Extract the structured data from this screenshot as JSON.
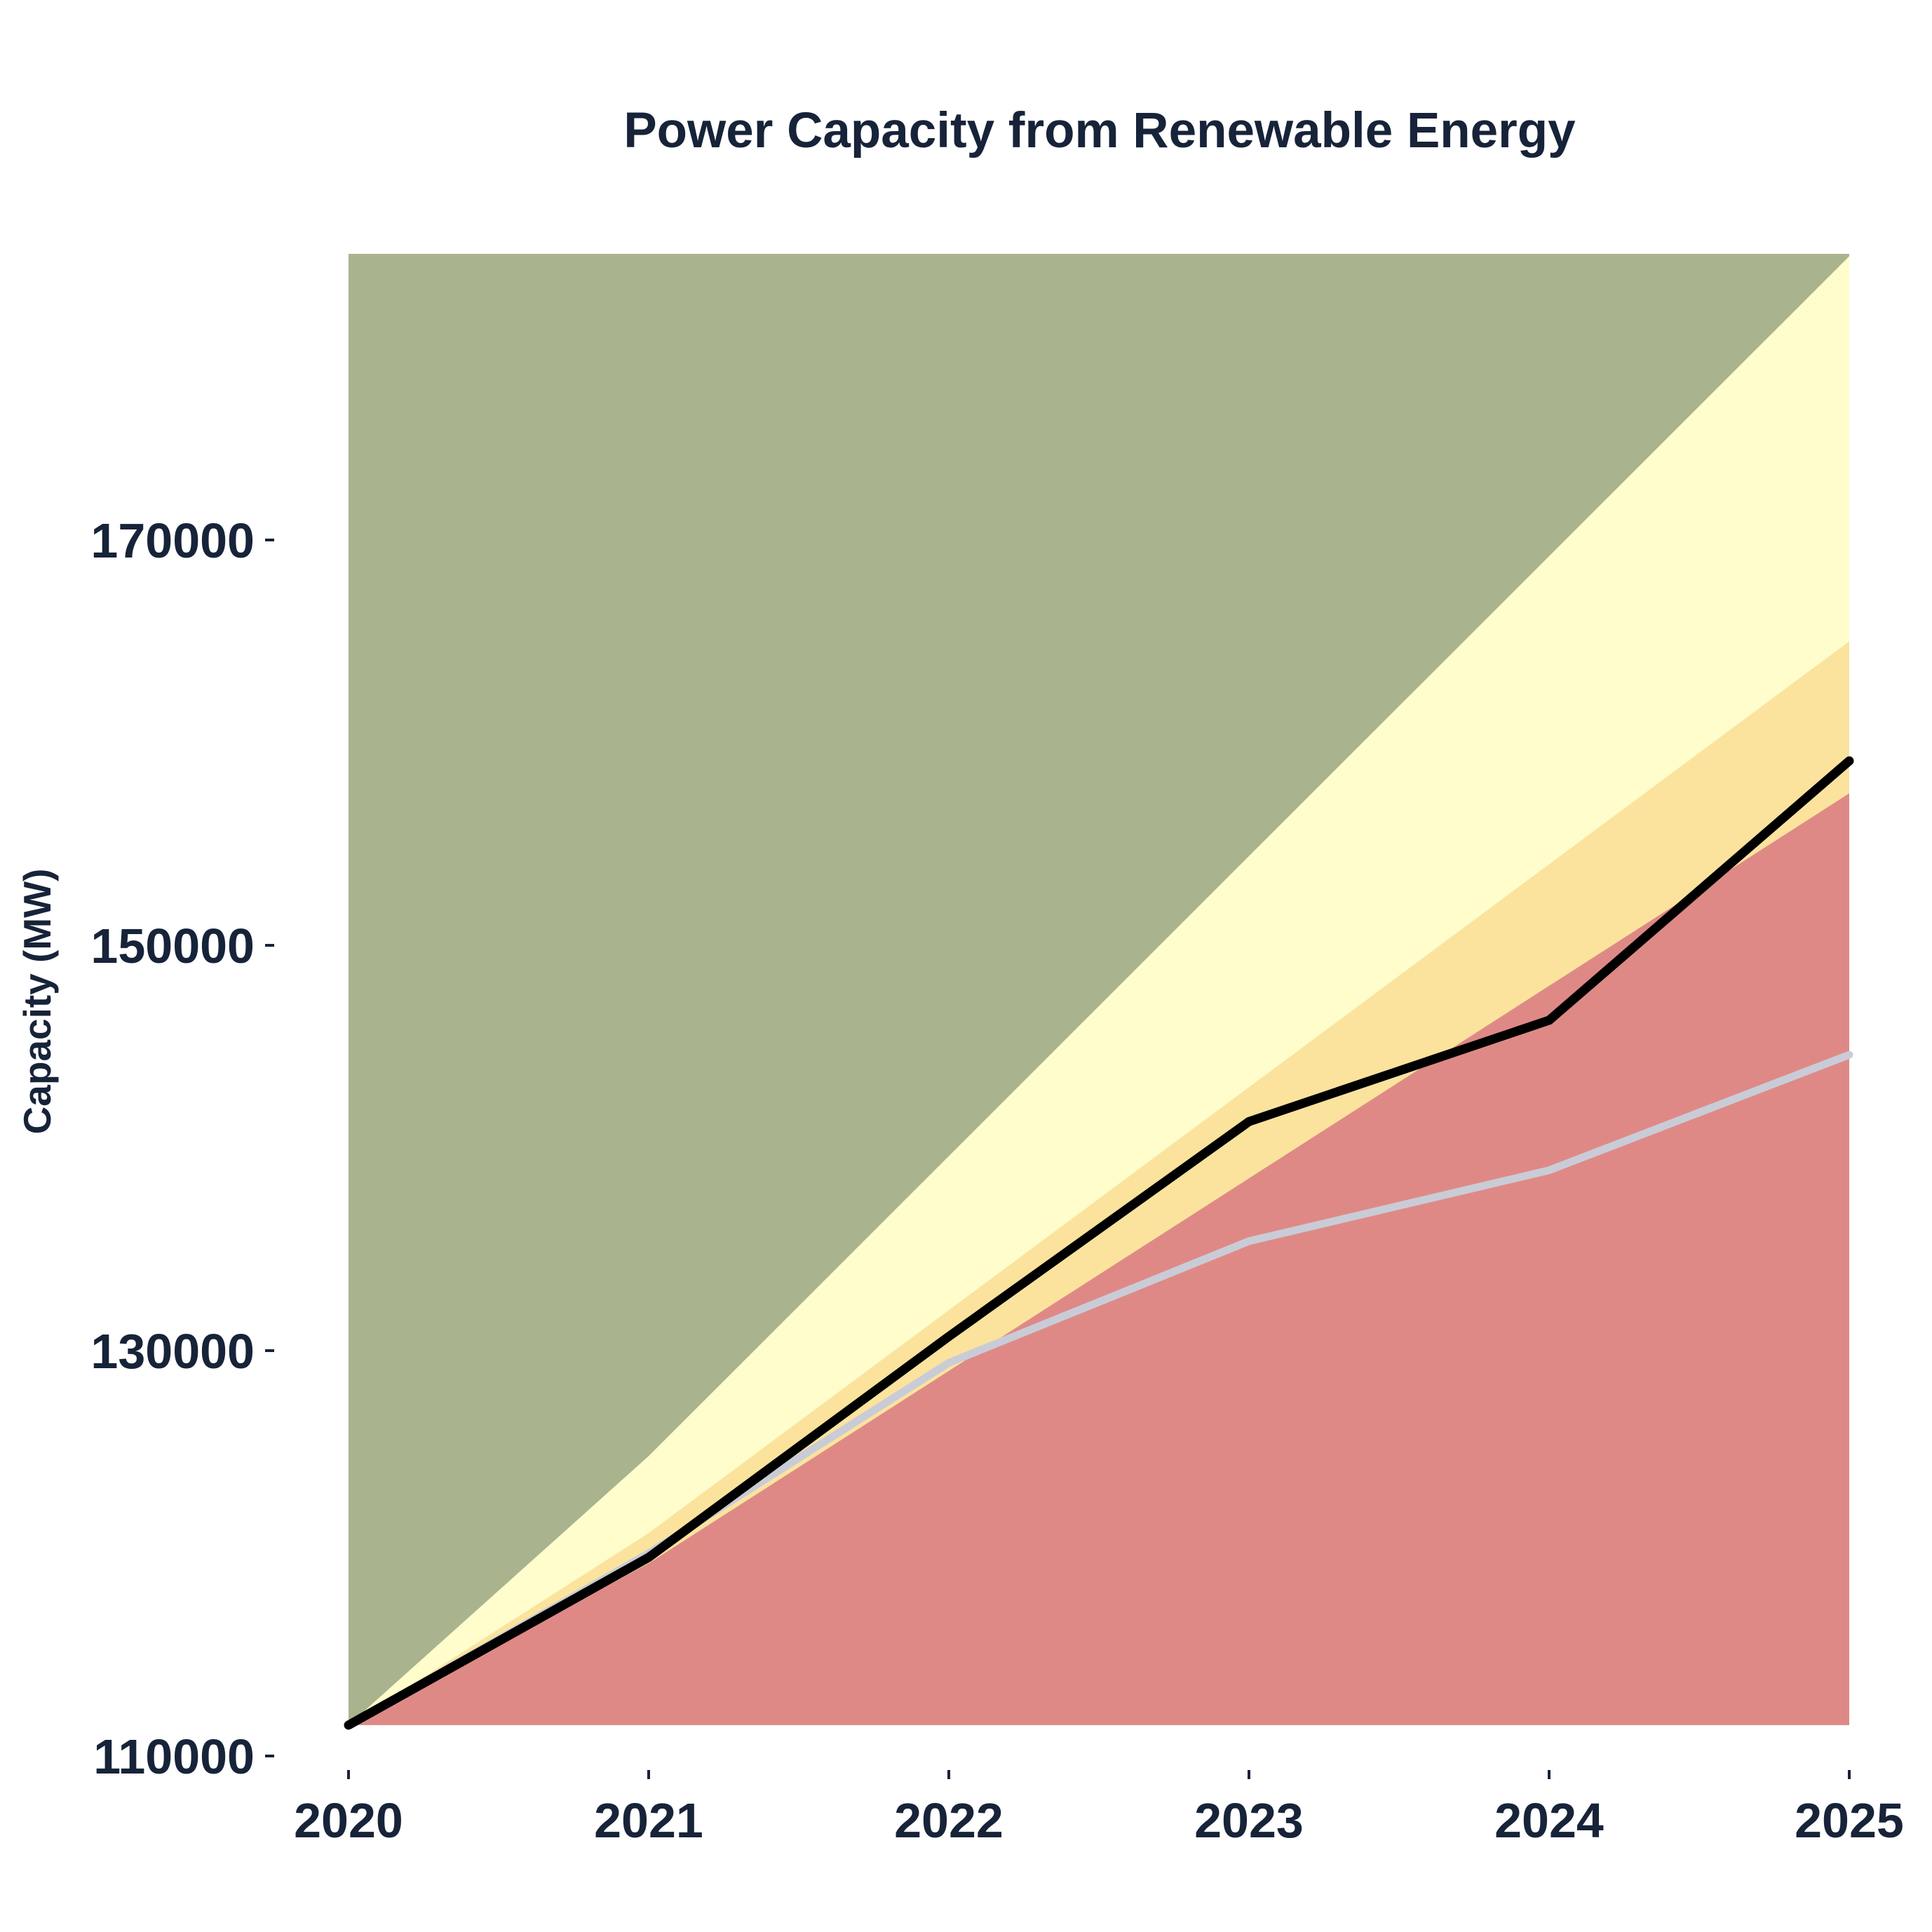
{
  "chart_data": {
    "type": "area",
    "title": "Power Capacity from Renewable Energy",
    "xlabel": "",
    "ylabel": "Capacity (MW)",
    "x": [
      2020,
      2021,
      2022,
      2023,
      2024,
      2025
    ],
    "xlim": [
      2020,
      2025
    ],
    "ylim": [
      110000,
      184000
    ],
    "yticks": [
      110000,
      130000,
      150000,
      170000
    ],
    "grid": false,
    "bands": [
      {
        "lower": [
          110000,
          110000,
          110000,
          110000,
          110000,
          110000
        ],
        "upper": [
          null,
          null,
          null,
          null,
          null,
          null
        ],
        "color": "#a9b48e"
      },
      {
        "lower": [
          110000,
          110000,
          110000,
          110000,
          110000,
          110000
        ],
        "upper": [
          110000,
          124800,
          139600,
          154400,
          169200,
          184000
        ],
        "color": "#fffdcc"
      },
      {
        "lower": [
          110000,
          110000,
          110000,
          110000,
          110000,
          110000
        ],
        "upper": [
          110000,
          121000,
          132000,
          143000,
          154000,
          165000
        ],
        "color": "#fbe39e"
      },
      {
        "lower": [
          110000,
          110000,
          110000,
          110000,
          110000,
          110000
        ],
        "upper": [
          110000,
          119500,
          129000,
          138500,
          148000,
          157500
        ],
        "color": "#df8987"
      }
    ],
    "series": [
      {
        "values": [
          110000,
          119800,
          130700,
          141300,
          146300,
          159100
        ],
        "color": "#000000"
      },
      {
        "values": [
          110000,
          120000,
          129400,
          135400,
          138900,
          144600
        ],
        "color": "#c9ccd6"
      }
    ]
  }
}
